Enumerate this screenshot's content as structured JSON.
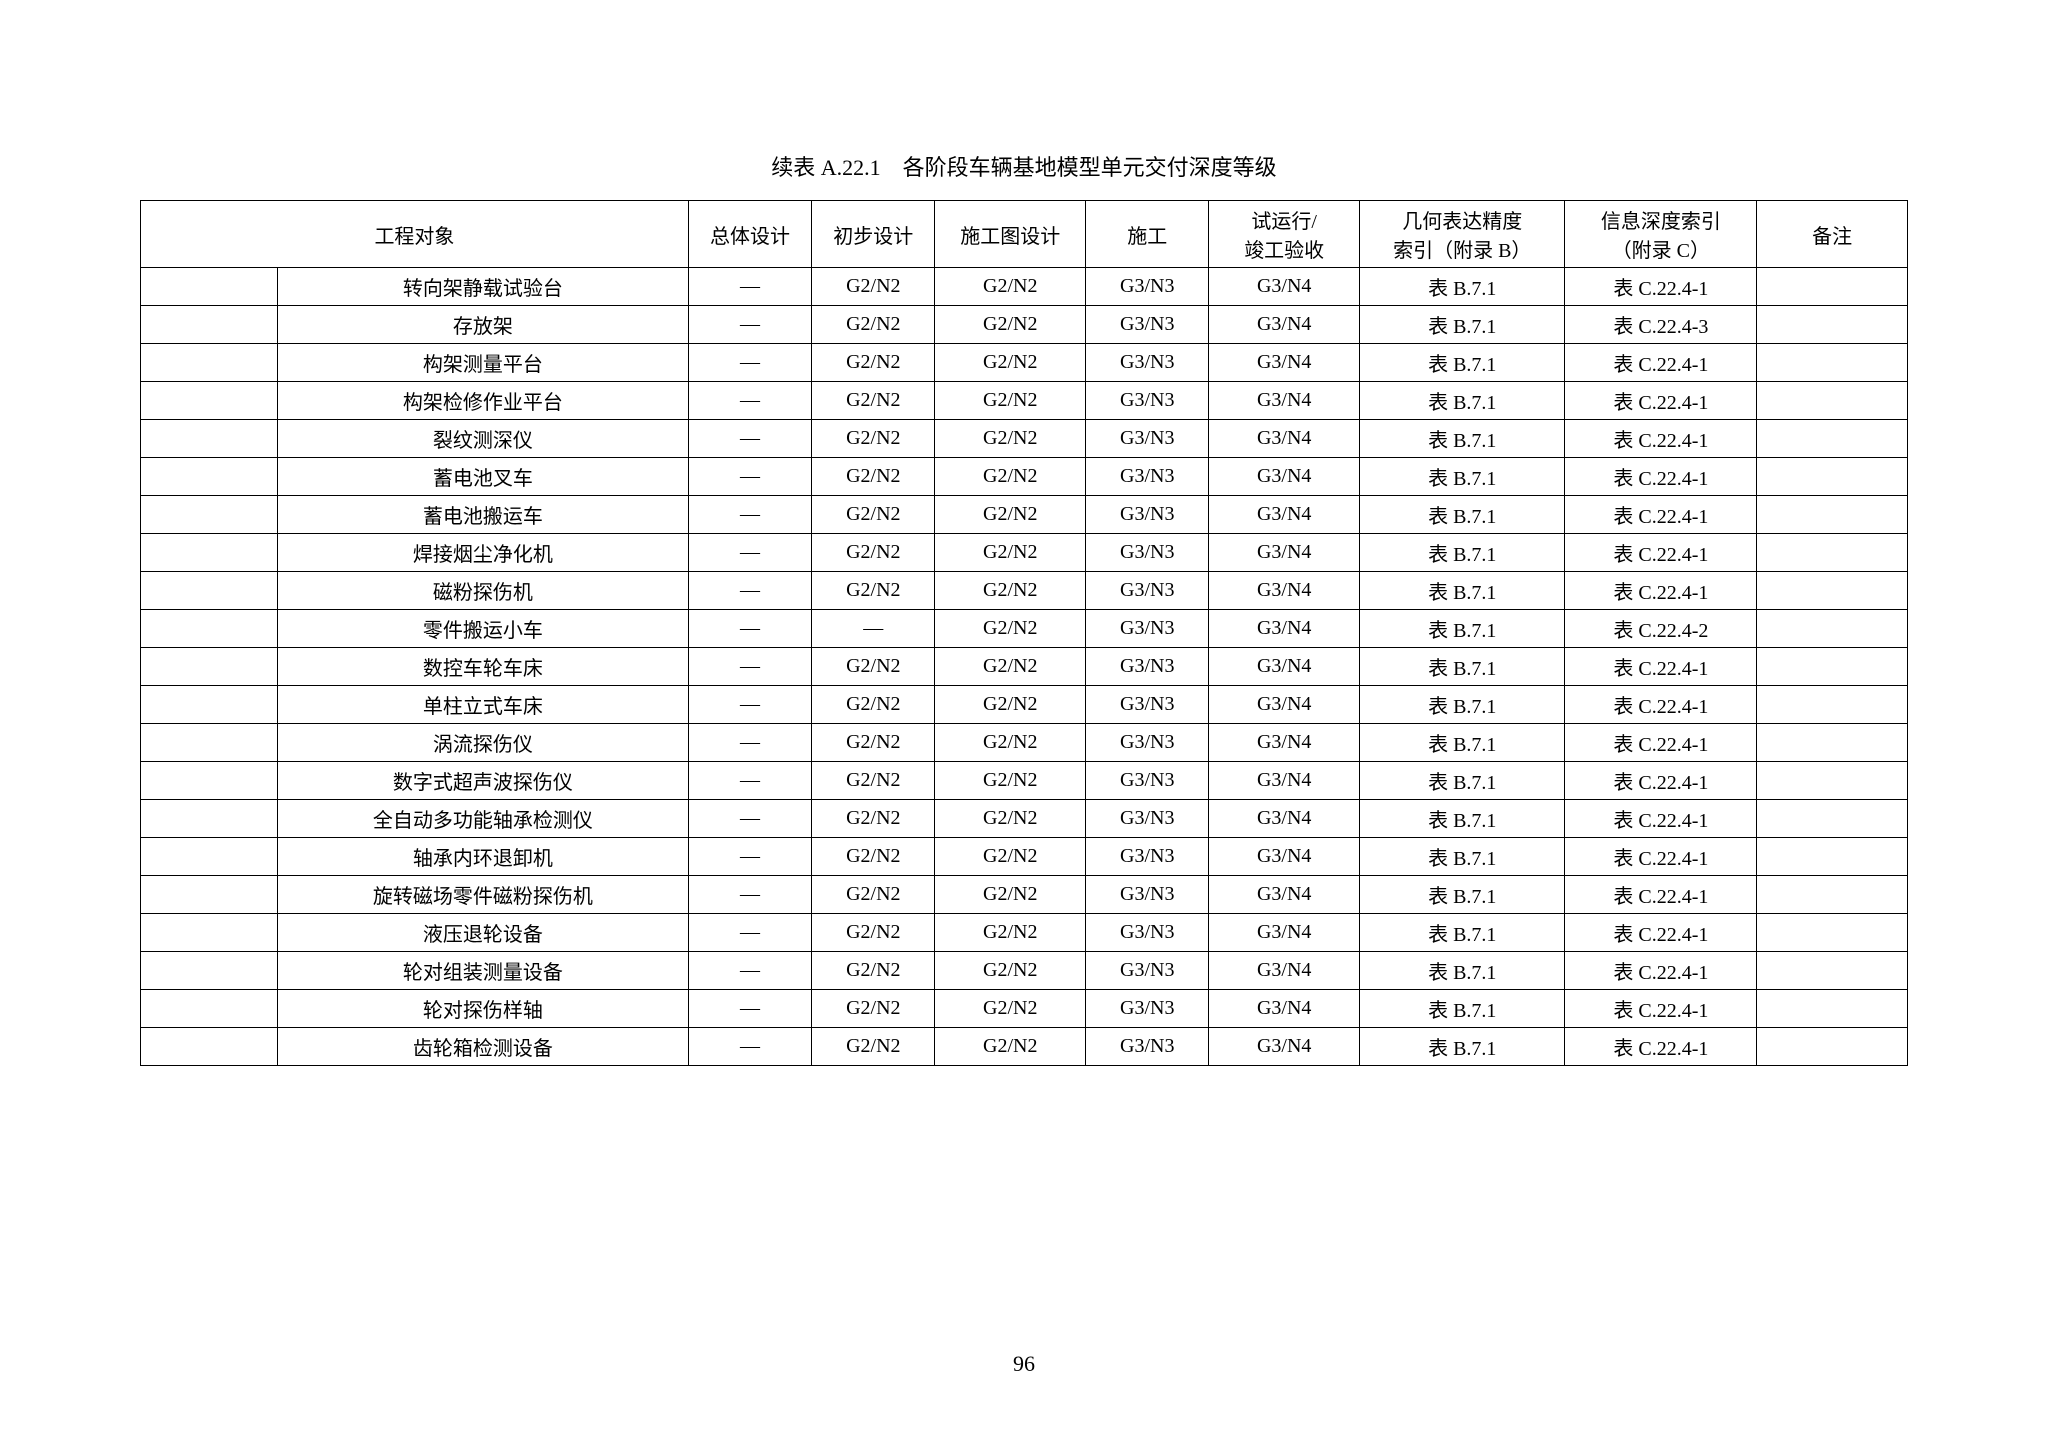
{
  "caption": "续表 A.22.1　各阶段车辆基地模型单元交付深度等级",
  "page_number": "96",
  "dash": "—",
  "headers": {
    "object": "工程对象",
    "overall": "总体设计",
    "prelim": "初步设计",
    "cd": "施工图设计",
    "construction": "施工",
    "trial_line1": "试运行/",
    "trial_line2": "竣工验收",
    "geom_line1": "几何表达精度",
    "geom_line2": "索引（附录 B）",
    "info_line1": "信息深度索引",
    "info_line2": "（附录 C）",
    "notes": "备注"
  },
  "rows": [
    {
      "obj": "转向架静载试验台",
      "overall": "—",
      "prelim": "G2/N2",
      "cd": "G2/N2",
      "con": "G3/N3",
      "trial": "G3/N4",
      "geom": "表 B.7.1",
      "info": "表 C.22.4-1",
      "note": ""
    },
    {
      "obj": "存放架",
      "overall": "—",
      "prelim": "G2/N2",
      "cd": "G2/N2",
      "con": "G3/N3",
      "trial": "G3/N4",
      "geom": "表 B.7.1",
      "info": "表 C.22.4-3",
      "note": ""
    },
    {
      "obj": "构架测量平台",
      "overall": "—",
      "prelim": "G2/N2",
      "cd": "G2/N2",
      "con": "G3/N3",
      "trial": "G3/N4",
      "geom": "表 B.7.1",
      "info": "表 C.22.4-1",
      "note": ""
    },
    {
      "obj": "构架检修作业平台",
      "overall": "—",
      "prelim": "G2/N2",
      "cd": "G2/N2",
      "con": "G3/N3",
      "trial": "G3/N4",
      "geom": "表 B.7.1",
      "info": "表 C.22.4-1",
      "note": ""
    },
    {
      "obj": "裂纹测深仪",
      "overall": "—",
      "prelim": "G2/N2",
      "cd": "G2/N2",
      "con": "G3/N3",
      "trial": "G3/N4",
      "geom": "表 B.7.1",
      "info": "表 C.22.4-1",
      "note": ""
    },
    {
      "obj": "蓄电池叉车",
      "overall": "—",
      "prelim": "G2/N2",
      "cd": "G2/N2",
      "con": "G3/N3",
      "trial": "G3/N4",
      "geom": "表 B.7.1",
      "info": "表 C.22.4-1",
      "note": ""
    },
    {
      "obj": "蓄电池搬运车",
      "overall": "—",
      "prelim": "G2/N2",
      "cd": "G2/N2",
      "con": "G3/N3",
      "trial": "G3/N4",
      "geom": "表 B.7.1",
      "info": "表 C.22.4-1",
      "note": ""
    },
    {
      "obj": "焊接烟尘净化机",
      "overall": "—",
      "prelim": "G2/N2",
      "cd": "G2/N2",
      "con": "G3/N3",
      "trial": "G3/N4",
      "geom": "表 B.7.1",
      "info": "表 C.22.4-1",
      "note": ""
    },
    {
      "obj": "磁粉探伤机",
      "overall": "—",
      "prelim": "G2/N2",
      "cd": "G2/N2",
      "con": "G3/N3",
      "trial": "G3/N4",
      "geom": "表 B.7.1",
      "info": "表 C.22.4-1",
      "note": ""
    },
    {
      "obj": "零件搬运小车",
      "overall": "—",
      "prelim": "—",
      "cd": "G2/N2",
      "con": "G3/N3",
      "trial": "G3/N4",
      "geom": "表 B.7.1",
      "info": "表 C.22.4-2",
      "note": ""
    },
    {
      "obj": "数控车轮车床",
      "overall": "—",
      "prelim": "G2/N2",
      "cd": "G2/N2",
      "con": "G3/N3",
      "trial": "G3/N4",
      "geom": "表 B.7.1",
      "info": "表 C.22.4-1",
      "note": ""
    },
    {
      "obj": "单柱立式车床",
      "overall": "—",
      "prelim": "G2/N2",
      "cd": "G2/N2",
      "con": "G3/N3",
      "trial": "G3/N4",
      "geom": "表 B.7.1",
      "info": "表 C.22.4-1",
      "note": ""
    },
    {
      "obj": "涡流探伤仪",
      "overall": "—",
      "prelim": "G2/N2",
      "cd": "G2/N2",
      "con": "G3/N3",
      "trial": "G3/N4",
      "geom": "表 B.7.1",
      "info": "表 C.22.4-1",
      "note": ""
    },
    {
      "obj": "数字式超声波探伤仪",
      "overall": "—",
      "prelim": "G2/N2",
      "cd": "G2/N2",
      "con": "G3/N3",
      "trial": "G3/N4",
      "geom": "表 B.7.1",
      "info": "表 C.22.4-1",
      "note": ""
    },
    {
      "obj": "全自动多功能轴承检测仪",
      "overall": "—",
      "prelim": "G2/N2",
      "cd": "G2/N2",
      "con": "G3/N3",
      "trial": "G3/N4",
      "geom": "表 B.7.1",
      "info": "表 C.22.4-1",
      "note": ""
    },
    {
      "obj": "轴承内环退卸机",
      "overall": "—",
      "prelim": "G2/N2",
      "cd": "G2/N2",
      "con": "G3/N3",
      "trial": "G3/N4",
      "geom": "表 B.7.1",
      "info": "表 C.22.4-1",
      "note": ""
    },
    {
      "obj": "旋转磁场零件磁粉探伤机",
      "overall": "—",
      "prelim": "G2/N2",
      "cd": "G2/N2",
      "con": "G3/N3",
      "trial": "G3/N4",
      "geom": "表 B.7.1",
      "info": "表 C.22.4-1",
      "note": ""
    },
    {
      "obj": "液压退轮设备",
      "overall": "—",
      "prelim": "G2/N2",
      "cd": "G2/N2",
      "con": "G3/N3",
      "trial": "G3/N4",
      "geom": "表 B.7.1",
      "info": "表 C.22.4-1",
      "note": ""
    },
    {
      "obj": "轮对组装测量设备",
      "overall": "—",
      "prelim": "G2/N2",
      "cd": "G2/N2",
      "con": "G3/N3",
      "trial": "G3/N4",
      "geom": "表 B.7.1",
      "info": "表 C.22.4-1",
      "note": ""
    },
    {
      "obj": "轮对探伤样轴",
      "overall": "—",
      "prelim": "G2/N2",
      "cd": "G2/N2",
      "con": "G3/N3",
      "trial": "G3/N4",
      "geom": "表 B.7.1",
      "info": "表 C.22.4-1",
      "note": ""
    },
    {
      "obj": "齿轮箱检测设备",
      "overall": "—",
      "prelim": "G2/N2",
      "cd": "G2/N2",
      "con": "G3/N3",
      "trial": "G3/N4",
      "geom": "表 B.7.1",
      "info": "表 C.22.4-1",
      "note": ""
    }
  ]
}
